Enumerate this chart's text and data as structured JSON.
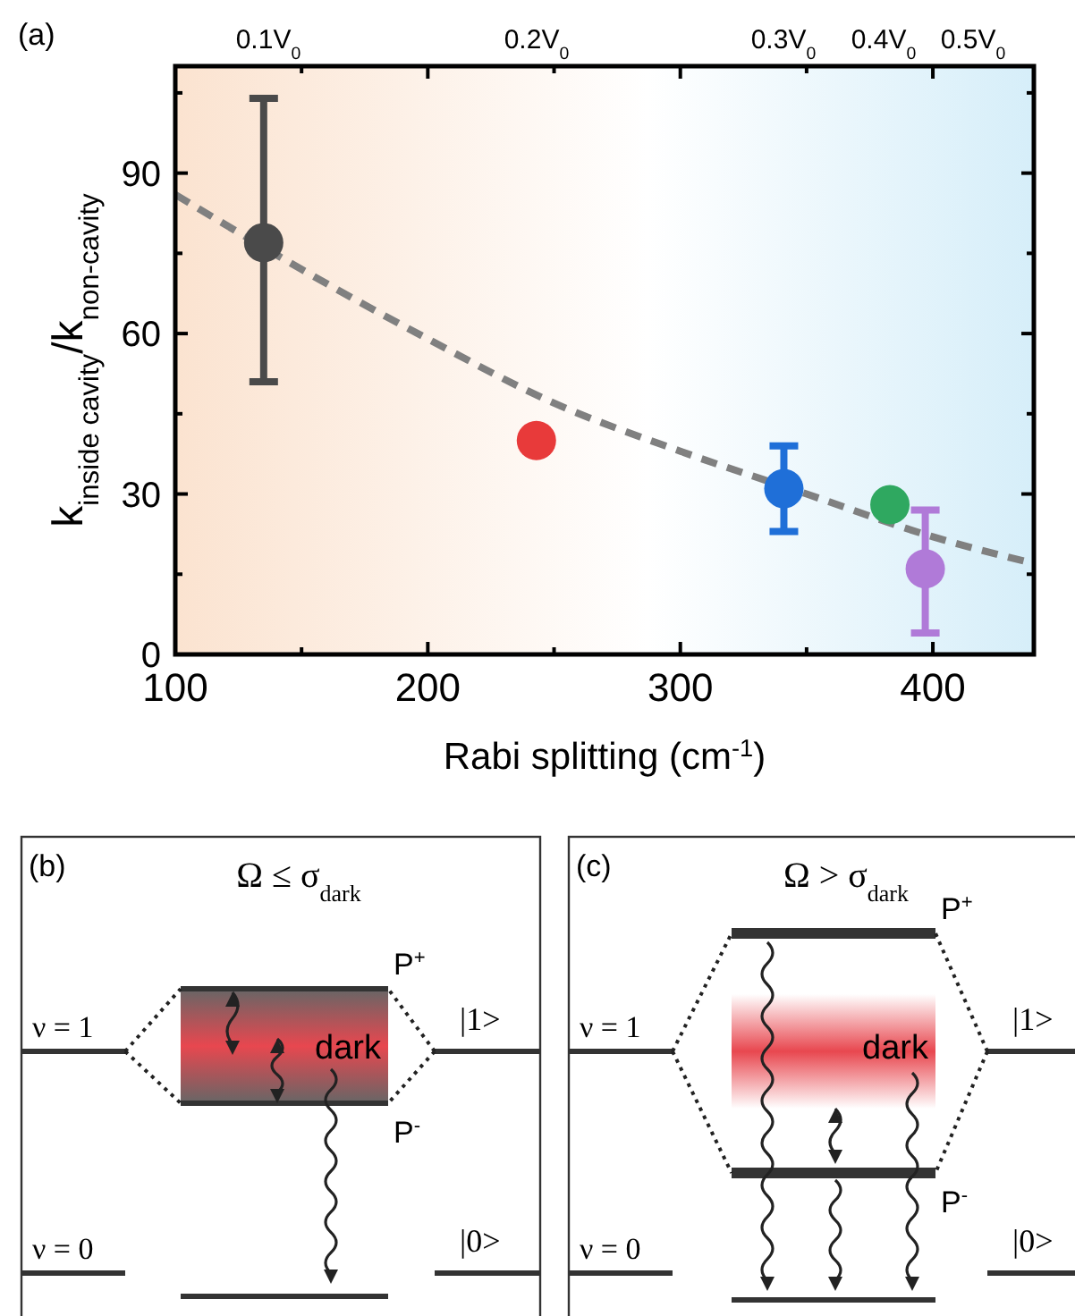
{
  "chart_data": [
    {
      "type": "scatter",
      "xlabel": "Rabi splitting (cm$^{-1}$)",
      "ylabel": "k$_{inside cavity}$/k$_{non-cavity}$",
      "annotations": [
        "(a)",
        "0.1V$_{0}$",
        "0.2V$_{0}$",
        "0.3V$_{0}$",
        "0.4V$_{0}$",
        "0.5V$_{0}$"
      ],
      "xlim": [
        100,
        440
      ],
      "xticks": [
        100,
        {
          "value": 150,
          "label": null
        },
        200,
        {
          "value": 250,
          "label": null
        },
        300,
        {
          "value": 350,
          "label": null
        },
        400
      ],
      "ylim": [
        0,
        110
      ],
      "yticks": [
        0,
        {
          "value": 15,
          "label": null
        },
        30,
        {
          "value": 45,
          "label": null
        },
        60,
        {
          "value": 75,
          "label": null
        },
        90,
        {
          "value": 105,
          "label": null
        }
      ],
      "series": [
        {
          "type": "line",
          "x": [
            100,
            150,
            200,
            250,
            300,
            350,
            400,
            440
          ],
          "values": [
            86,
            72,
            59,
            47,
            38,
            30,
            22,
            17
          ],
          "color": "#808080",
          "line_style": "dashed",
          "marker": "none"
        },
        {
          "type": "scatter",
          "marker": "circle",
          "x": [
            135,
            243,
            341,
            383,
            397
          ],
          "values": [
            77,
            40,
            31,
            28,
            16
          ],
          "colors": [
            "#4a4a4a",
            "#e83a3a",
            "#1f6fd8",
            "#2fa860",
            "#b07ad8"
          ],
          "errors": [
            [
              51,
              104
            ],
            null,
            [
              23,
              39
            ],
            null,
            [
              4,
              27
            ]
          ]
        }
      ]
    },
    {
      "type": "other",
      "title": "Ω ≤ σ$_{dark}$",
      "annotations": [
        "(b)",
        "ν = 1",
        "ν = 0",
        "P$^{+}$",
        "P$^{-}$",
        "dark",
        "|1>",
        "|0>"
      ]
    },
    {
      "type": "other",
      "title": "Ω > σ$_{dark}$",
      "annotations": [
        "(c)",
        "ν = 1",
        "ν = 0",
        "P$^{+}$",
        "P$^{-}$",
        "dark",
        "|1>",
        "|0>"
      ]
    }
  ]
}
